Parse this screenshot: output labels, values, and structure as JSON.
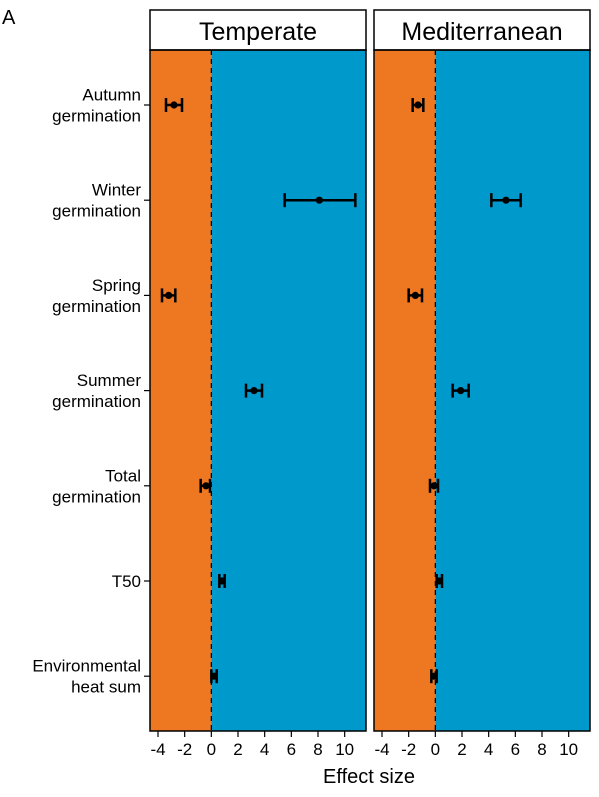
{
  "panel_label": "A",
  "colors": {
    "negative": "#EE7722",
    "positive": "#0099CC",
    "strip_fill": "#FFFFFF",
    "ink": "#000000"
  },
  "chart_data": {
    "type": "forest",
    "xlabel": "Effect size",
    "xlim": [
      -4.6,
      11.6
    ],
    "xticks": [
      -4,
      -2,
      0,
      2,
      4,
      6,
      8,
      10
    ],
    "xtick_labels": [
      "-4",
      "-2",
      "0",
      "2",
      "4",
      "6",
      "8",
      "10"
    ],
    "reference_line": 0,
    "categories": [
      [
        "Autumn",
        "germination"
      ],
      [
        "Winter",
        "germination"
      ],
      [
        "Spring",
        "germination"
      ],
      [
        "Summer",
        "germination"
      ],
      [
        "Total",
        "germination"
      ],
      [
        "T50"
      ],
      [
        "Environmental",
        "heat sum"
      ]
    ],
    "panels": [
      {
        "name": "Temperate",
        "estimates": [
          -2.8,
          8.1,
          -3.2,
          3.2,
          -0.4,
          0.8,
          0.2
        ],
        "lower": [
          -3.4,
          5.5,
          -3.7,
          2.6,
          -0.8,
          0.6,
          0.0
        ],
        "upper": [
          -2.2,
          10.8,
          -2.7,
          3.8,
          -0.1,
          1.0,
          0.4
        ]
      },
      {
        "name": "Mediterranean",
        "estimates": [
          -1.3,
          5.3,
          -1.5,
          1.9,
          -0.1,
          0.3,
          -0.1
        ],
        "lower": [
          -1.7,
          4.2,
          -2.0,
          1.3,
          -0.4,
          0.1,
          -0.3
        ],
        "upper": [
          -0.9,
          6.4,
          -1.0,
          2.5,
          0.2,
          0.5,
          0.1
        ]
      }
    ]
  }
}
